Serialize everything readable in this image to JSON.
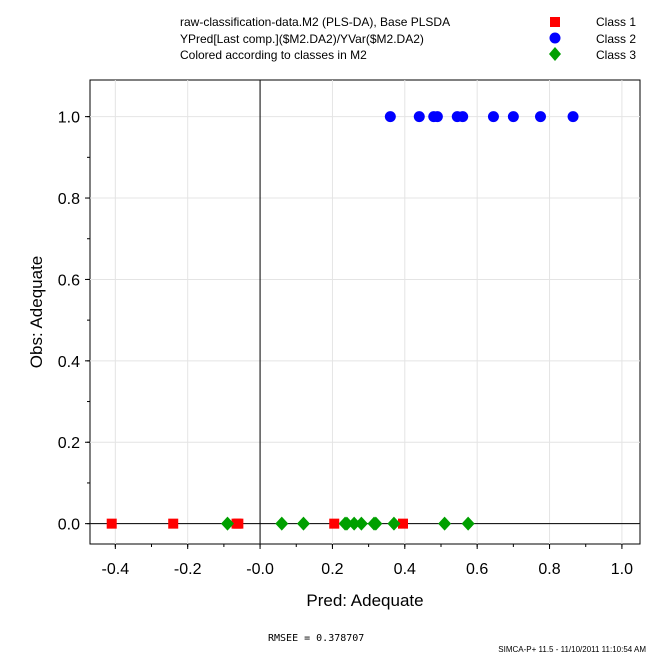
{
  "chart_data": {
    "type": "scatter",
    "title_lines": [
      "raw-classification-data.M2 (PLS-DA), Base PLSDA",
      "YPred[Last comp.]($M2.DA2)/YVar($M2.DA2)",
      "Colored according to classes in M2"
    ],
    "xlabel": "Pred: Adequate",
    "ylabel": "Obs: Adequate",
    "xlim": [
      -0.47,
      1.05
    ],
    "ylim": [
      -0.05,
      1.09
    ],
    "xticks": [
      -0.4,
      -0.2,
      0.0,
      0.2,
      0.4,
      0.6,
      0.8,
      1.0
    ],
    "xtick_labels": [
      "-0.4",
      "-0.2",
      "-0.0",
      "0.2",
      "0.4",
      "0.6",
      "0.8",
      "1.0"
    ],
    "yticks": [
      0.0,
      0.2,
      0.4,
      0.6,
      0.8,
      1.0
    ],
    "ytick_labels": [
      "0.0",
      "0.2",
      "0.4",
      "0.6",
      "0.8",
      "1.0"
    ],
    "grid": true,
    "legend_position": "top-right",
    "series": [
      {
        "name": "Class 1",
        "marker": "square",
        "color": "#ff0000",
        "points": [
          [
            -0.41,
            0
          ],
          [
            -0.24,
            0
          ],
          [
            -0.065,
            0
          ],
          [
            -0.06,
            0
          ],
          [
            0.205,
            0
          ],
          [
            0.395,
            0
          ]
        ]
      },
      {
        "name": "Class 2",
        "marker": "circle",
        "color": "#0000ff",
        "points": [
          [
            0.36,
            1
          ],
          [
            0.44,
            1
          ],
          [
            0.48,
            1
          ],
          [
            0.49,
            1
          ],
          [
            0.545,
            1
          ],
          [
            0.56,
            1
          ],
          [
            0.645,
            1
          ],
          [
            0.7,
            1
          ],
          [
            0.775,
            1
          ],
          [
            0.865,
            1
          ]
        ]
      },
      {
        "name": "Class 3",
        "marker": "diamond",
        "color": "#00a000",
        "points": [
          [
            -0.09,
            0
          ],
          [
            0.06,
            0
          ],
          [
            0.12,
            0
          ],
          [
            0.235,
            0
          ],
          [
            0.24,
            0
          ],
          [
            0.26,
            0
          ],
          [
            0.28,
            0
          ],
          [
            0.315,
            0
          ],
          [
            0.32,
            0
          ],
          [
            0.37,
            0
          ],
          [
            0.51,
            0
          ],
          [
            0.575,
            0
          ]
        ]
      }
    ]
  },
  "footer": {
    "rmsee": "RMSEE = 0.378707",
    "stamp": "SIMCA-P+ 11.5 - 11/10/2011 11:10:54 AM"
  }
}
